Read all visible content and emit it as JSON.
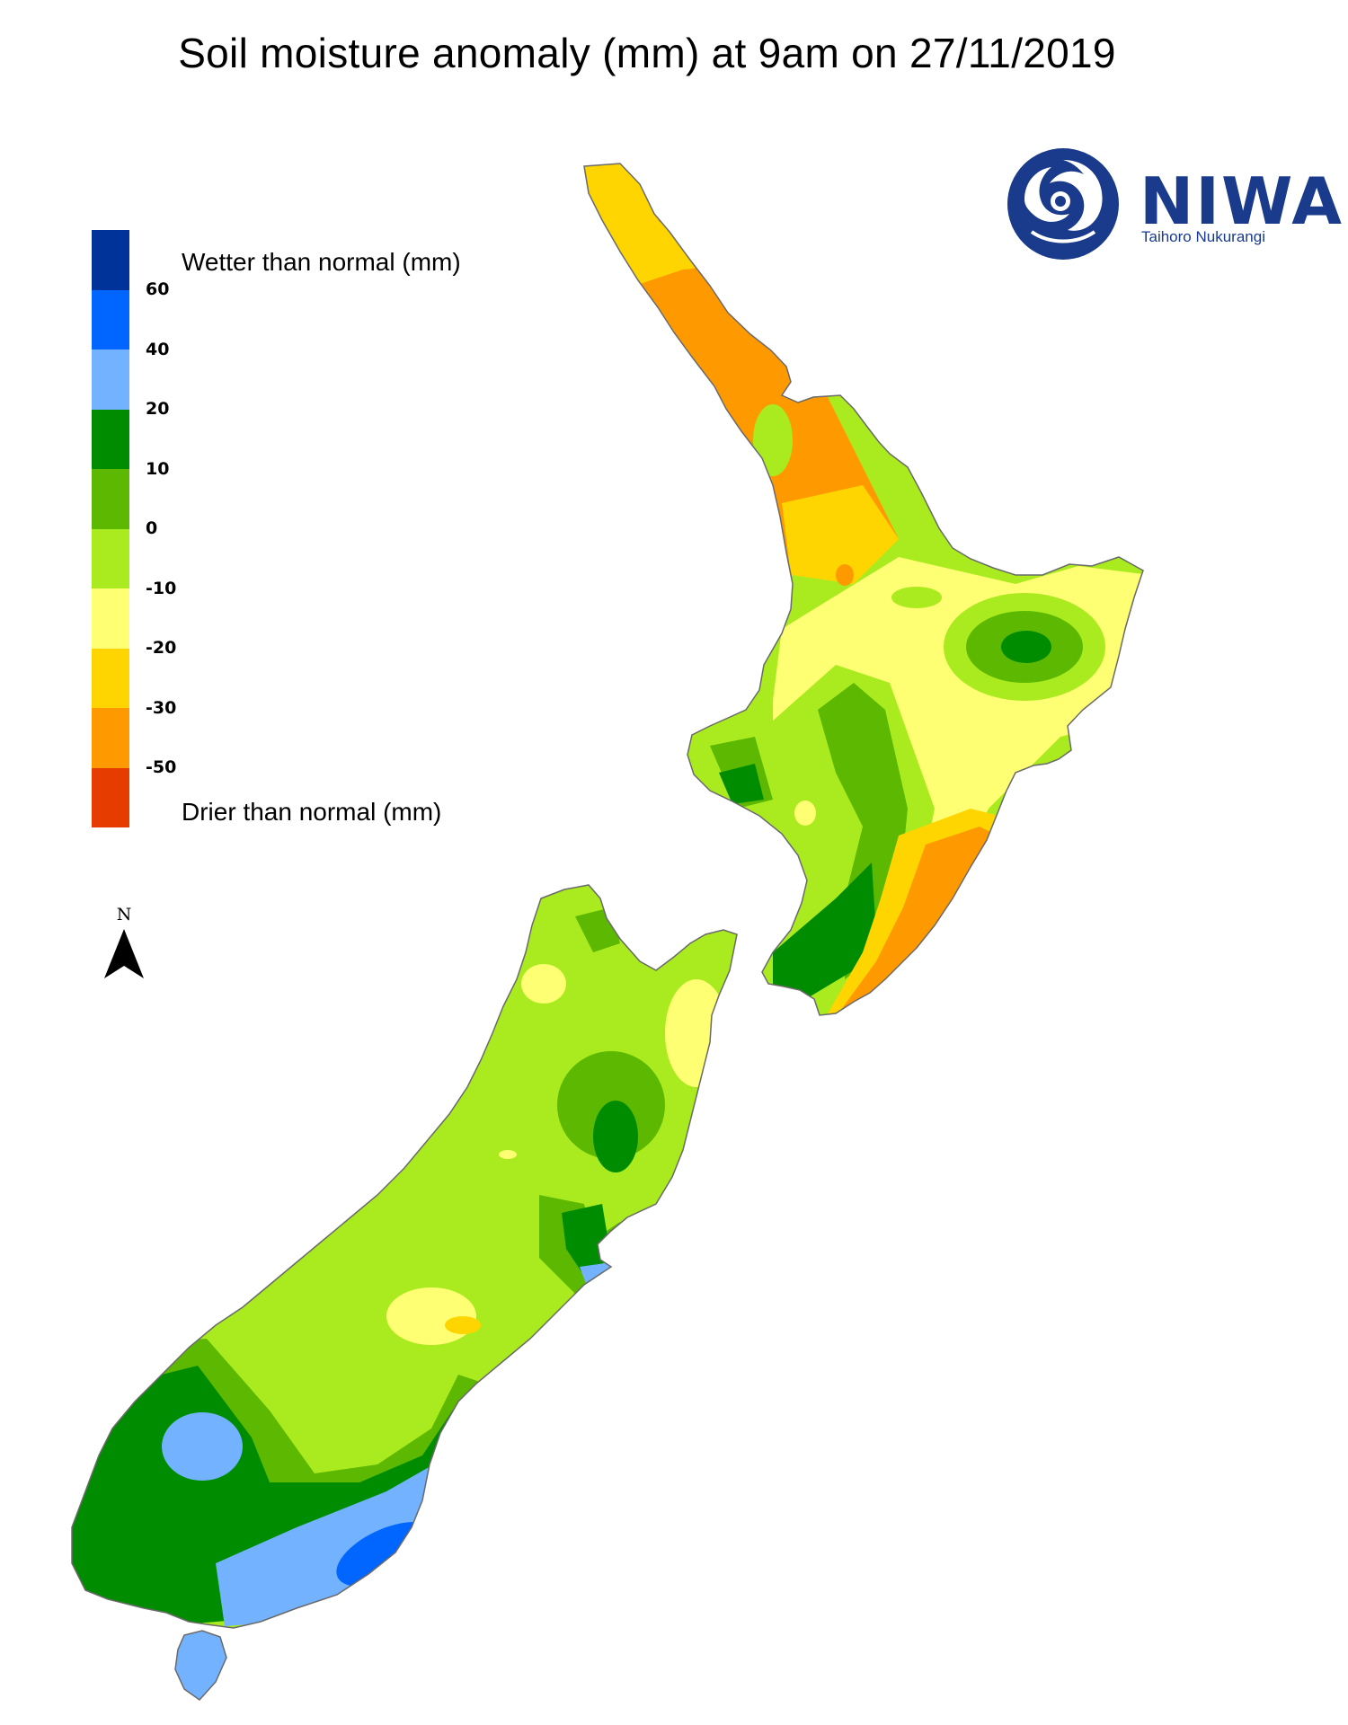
{
  "title": "Soil moisture anomaly (mm) at 9am on 27/11/2019",
  "legend": {
    "wetter_label": "Wetter than normal (mm)",
    "drier_label": "Drier than normal (mm)",
    "tick_labels": [
      "60",
      "40",
      "20",
      "10",
      "0",
      "-10",
      "-20",
      "-30",
      "-50"
    ],
    "colors": [
      "#003399",
      "#0066ff",
      "#73b2ff",
      "#008c00",
      "#5cb800",
      "#aaeb1f",
      "#ffff73",
      "#ffd500",
      "#ff9900",
      "#e63c00"
    ]
  },
  "north_arrow": {
    "letter": "N"
  },
  "logo": {
    "name": "NIWA",
    "subtitle": "Taihoro Nukurangi",
    "color": "#1a3a8c"
  },
  "map": {
    "region": "New Zealand",
    "islands": [
      "North Island",
      "South Island",
      "Stewart Island"
    ]
  }
}
